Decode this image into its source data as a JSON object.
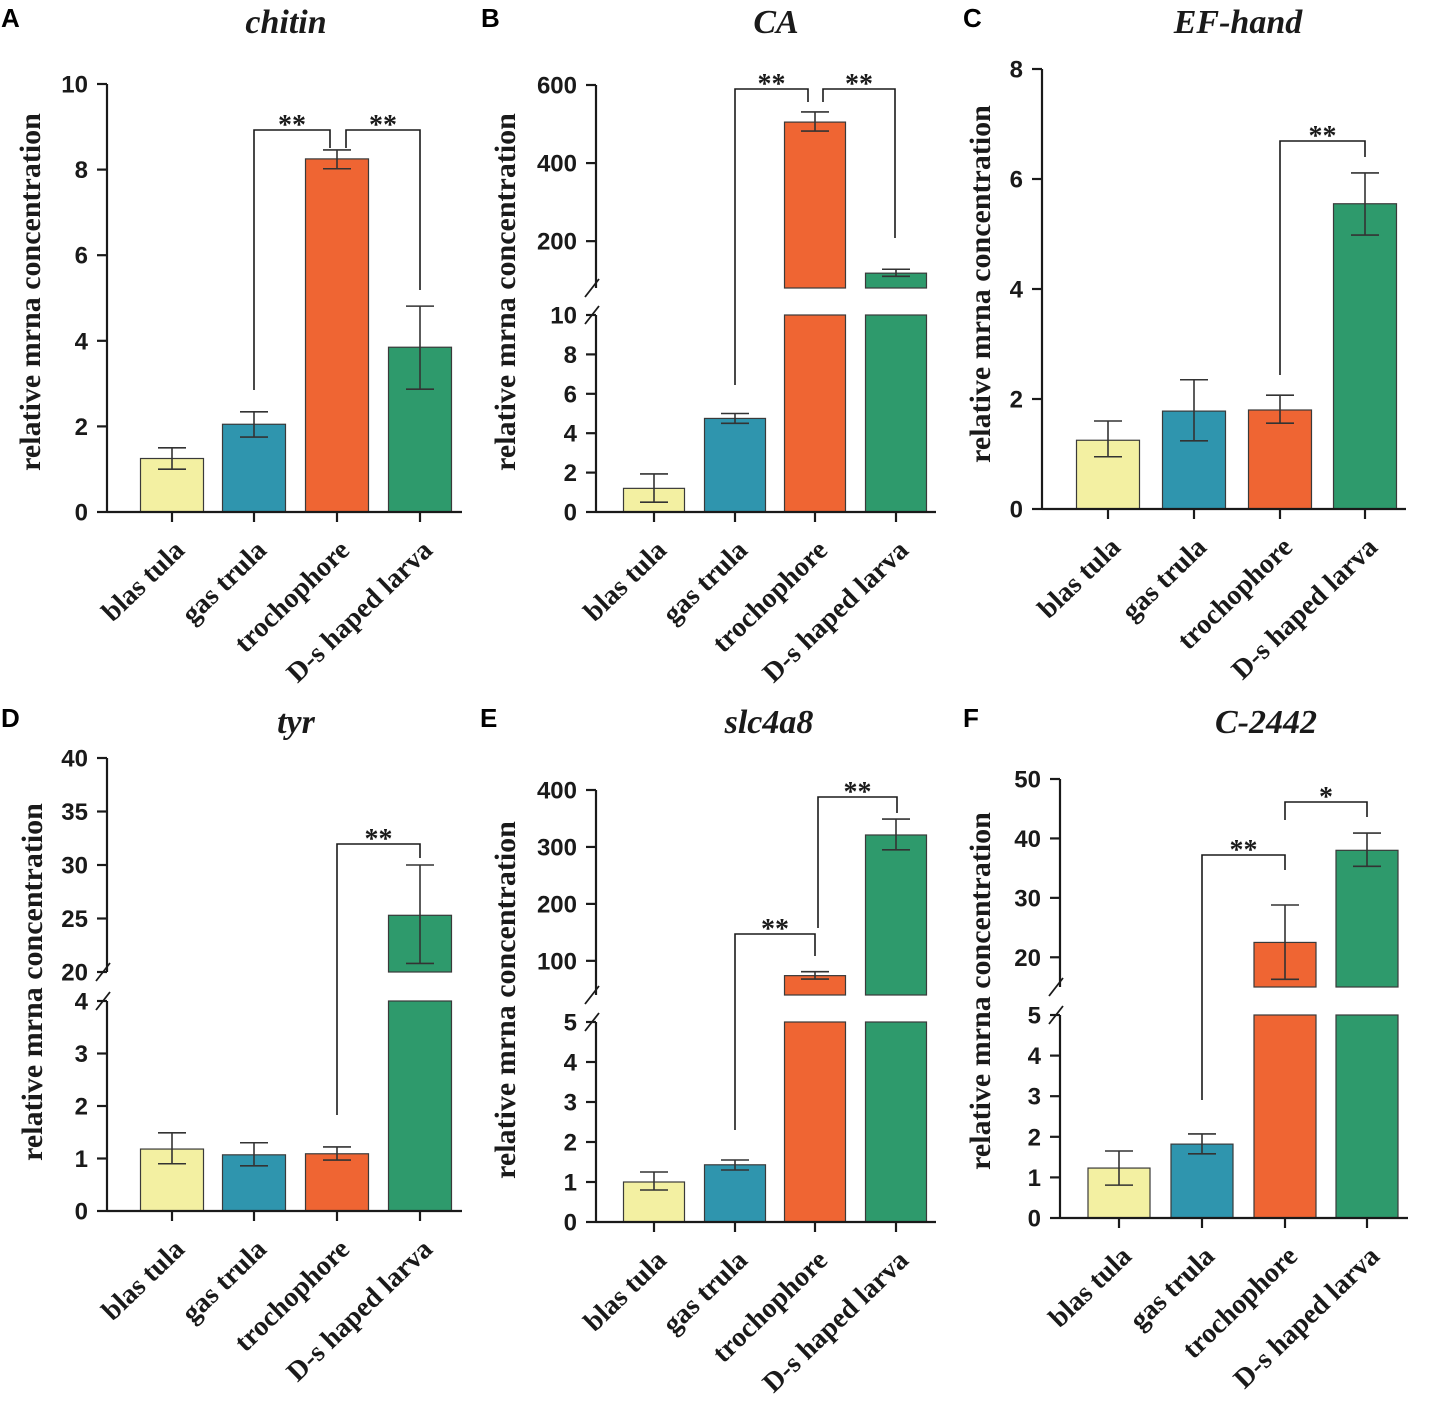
{
  "category_colors": [
    "#F3F0A2",
    "#2F95AE",
    "#EF6533",
    "#2E9A6C"
  ],
  "chart_data": [
    {
      "panel": "A",
      "type": "bar",
      "title": "chitin",
      "xlabel": "",
      "ylabel": "relative mrna concentration",
      "categories": [
        "blas tula",
        "gas trula",
        "trochophore",
        "D-s haped larva"
      ],
      "values": [
        1.25,
        2.05,
        8.25,
        3.85
      ],
      "errors": [
        [
          1.0,
          1.5
        ],
        [
          1.75,
          2.34
        ],
        [
          8.02,
          8.46
        ],
        [
          2.87,
          4.81
        ]
      ],
      "ylim": [
        0,
        10
      ],
      "y_segments": [
        {
          "range": [
            0,
            10
          ],
          "ticks": [
            0,
            2,
            4,
            6,
            8,
            10
          ]
        }
      ],
      "significance": [
        {
          "groups": [
            1,
            2
          ],
          "label": "**"
        },
        {
          "groups": [
            2,
            3
          ],
          "label": "**"
        }
      ]
    },
    {
      "panel": "B",
      "type": "bar",
      "title": "CA",
      "xlabel": "",
      "ylabel": "relative mrna concentration",
      "categories": [
        "blas tula",
        "gas trula",
        "trochophore",
        "D-s haped larva"
      ],
      "values": [
        1.2,
        4.75,
        505,
        118
      ],
      "errors": [
        [
          0.5,
          1.93
        ],
        [
          4.5,
          5.0
        ],
        [
          482,
          531
        ],
        [
          110,
          128
        ]
      ],
      "ylim": [
        0,
        600
      ],
      "y_segments": [
        {
          "range": [
            0,
            10
          ],
          "ticks": [
            0,
            2,
            4,
            6,
            8,
            10
          ]
        },
        {
          "range": [
            80,
            600
          ],
          "ticks": [
            200,
            400,
            600
          ]
        }
      ],
      "significance": [
        {
          "groups": [
            1,
            2
          ],
          "label": "**"
        },
        {
          "groups": [
            2,
            3
          ],
          "label": "**"
        }
      ]
    },
    {
      "panel": "C",
      "type": "bar",
      "title": "EF-hand",
      "xlabel": "",
      "ylabel": "relative mrna concentration",
      "categories": [
        "blas tula",
        "gas trula",
        "trochophore",
        "D-s haped larva"
      ],
      "values": [
        1.25,
        1.78,
        1.8,
        5.55
      ],
      "errors": [
        [
          0.95,
          1.6
        ],
        [
          1.24,
          2.35
        ],
        [
          1.56,
          2.07
        ],
        [
          4.98,
          6.11
        ]
      ],
      "ylim": [
        0,
        8
      ],
      "y_segments": [
        {
          "range": [
            0,
            8
          ],
          "ticks": [
            0,
            2,
            4,
            6,
            8
          ]
        }
      ],
      "significance": [
        {
          "groups": [
            2,
            3
          ],
          "label": "**"
        }
      ]
    },
    {
      "panel": "D",
      "type": "bar",
      "title": "tyr",
      "xlabel": "",
      "ylabel": "relative mrna concentration",
      "categories": [
        "blas tula",
        "gas trula",
        "trochophore",
        "D-s haped larva"
      ],
      "values": [
        1.18,
        1.07,
        1.09,
        25.3
      ],
      "errors": [
        [
          0.9,
          1.49
        ],
        [
          0.86,
          1.3
        ],
        [
          0.97,
          1.22
        ],
        [
          20.8,
          30.0
        ]
      ],
      "ylim": [
        0,
        40
      ],
      "y_segments": [
        {
          "range": [
            0,
            4
          ],
          "ticks": [
            0,
            1,
            2,
            3,
            4
          ]
        },
        {
          "range": [
            20,
            40
          ],
          "ticks": [
            20,
            25,
            30,
            35,
            40
          ]
        }
      ],
      "significance": [
        {
          "groups": [
            2,
            3
          ],
          "label": "**"
        }
      ]
    },
    {
      "panel": "E",
      "type": "bar",
      "title": "slc4a8",
      "xlabel": "",
      "ylabel": "relative mrna concentration",
      "categories": [
        "blas tula",
        "gas trula",
        "trochophore",
        "D-s haped larva"
      ],
      "values": [
        1.0,
        1.43,
        74,
        321
      ],
      "errors": [
        [
          0.8,
          1.25
        ],
        [
          1.3,
          1.55
        ],
        [
          68,
          81
        ],
        [
          295,
          349
        ]
      ],
      "ylim": [
        0,
        400
      ],
      "y_segments": [
        {
          "range": [
            0,
            5
          ],
          "ticks": [
            0,
            1,
            2,
            3,
            4,
            5
          ]
        },
        {
          "range": [
            40,
            400
          ],
          "ticks": [
            100,
            200,
            300,
            400
          ]
        }
      ],
      "significance": [
        {
          "groups": [
            1,
            2
          ],
          "label": "**"
        },
        {
          "groups": [
            2,
            3
          ],
          "label": "**"
        }
      ]
    },
    {
      "panel": "F",
      "type": "bar",
      "title": "C-2442",
      "xlabel": "",
      "ylabel": "relative mrna concentration",
      "categories": [
        "blas tula",
        "gas trula",
        "trochophore",
        "D-s haped larva"
      ],
      "values": [
        1.23,
        1.82,
        22.5,
        38.0
      ],
      "errors": [
        [
          0.81,
          1.65
        ],
        [
          1.58,
          2.07
        ],
        [
          16.3,
          28.8
        ],
        [
          35.3,
          40.9
        ]
      ],
      "ylim": [
        0,
        50
      ],
      "y_segments": [
        {
          "range": [
            0,
            5
          ],
          "ticks": [
            0,
            1,
            2,
            3,
            4,
            5
          ]
        },
        {
          "range": [
            15,
            50
          ],
          "ticks": [
            20,
            30,
            40,
            50
          ]
        }
      ],
      "significance": [
        {
          "groups": [
            1,
            2
          ],
          "label": "**"
        },
        {
          "groups": [
            2,
            3
          ],
          "label": "*"
        }
      ]
    }
  ]
}
